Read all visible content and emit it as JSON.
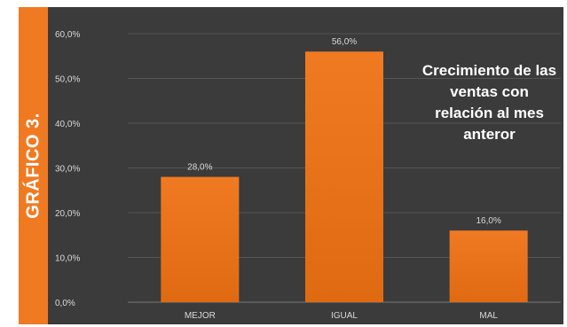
{
  "side_label": "GRÁFICO 3.",
  "colors": {
    "bar": "#f07a22",
    "bar_dark": "#e06a12",
    "background": "#3b3b3b",
    "side_label": "#f07a22",
    "grid": "#555555",
    "text": "#d9d9d9"
  },
  "chart_data": {
    "type": "bar",
    "title": "Crecimiento de las ventas con relación al mes anteror",
    "categories": [
      "MEJOR",
      "IGUAL",
      "MAL"
    ],
    "values": [
      28.0,
      56.0,
      16.0
    ],
    "data_labels": [
      "28,0%",
      "56,0%",
      "16,0%"
    ],
    "y_ticks": [
      0,
      10,
      20,
      30,
      40,
      50,
      60
    ],
    "y_tick_labels": [
      "0,0%",
      "10,0%",
      "20,0%",
      "30,0%",
      "40,0%",
      "50,0%",
      "60,0%"
    ],
    "ylim": [
      0,
      60
    ],
    "grid": true,
    "xlabel": "",
    "ylabel": ""
  }
}
